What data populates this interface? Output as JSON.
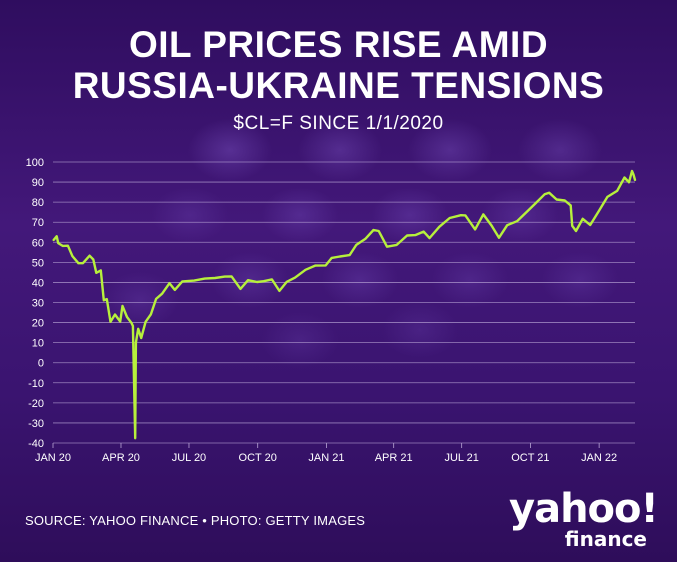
{
  "title_line1": "OIL PRICES RISE AMID",
  "title_line2": "RUSSIA-UKRAINE TENSIONS",
  "subtitle": "$CL=F SINCE 1/1/2020",
  "source": "SOURCE: YAHOO FINANCE • PHOTO: GETTY IMAGES",
  "logo": {
    "main": "yahoo!",
    "sub": "finance"
  },
  "colors": {
    "background": "#3b1470",
    "line": "#b7f03c",
    "grid": "#b9a6d6",
    "text": "#ffffff"
  },
  "chart_data": {
    "type": "line",
    "title": "OIL PRICES RISE AMID RUSSIA-UKRAINE TENSIONS",
    "subtitle": "$CL=F SINCE 1/1/2020",
    "xlabel": "",
    "ylabel": "",
    "ylim": [
      -40,
      100
    ],
    "yticks": [
      100,
      90,
      80,
      70,
      60,
      50,
      40,
      30,
      20,
      10,
      0,
      -10,
      -20,
      -30,
      -40
    ],
    "xlim": [
      "2020-01-01",
      "2022-02-18"
    ],
    "xticks": [
      {
        "date": "2020-01-01",
        "label": "JAN 20"
      },
      {
        "date": "2020-04-01",
        "label": "APR 20"
      },
      {
        "date": "2020-07-01",
        "label": "JUL 20"
      },
      {
        "date": "2020-10-01",
        "label": "OCT 20"
      },
      {
        "date": "2021-01-01",
        "label": "JAN 21"
      },
      {
        "date": "2021-04-01",
        "label": "APR 21"
      },
      {
        "date": "2021-07-01",
        "label": "JUL 21"
      },
      {
        "date": "2021-10-01",
        "label": "OCT 21"
      },
      {
        "date": "2022-01-01",
        "label": "JAN 22"
      }
    ],
    "grid": true,
    "series": [
      {
        "points": [
          [
            "2020-01-02",
            61.2
          ],
          [
            "2020-01-06",
            63.0
          ],
          [
            "2020-01-08",
            59.6
          ],
          [
            "2020-01-14",
            58.2
          ],
          [
            "2020-01-21",
            58.3
          ],
          [
            "2020-01-27",
            53.1
          ],
          [
            "2020-02-04",
            49.6
          ],
          [
            "2020-02-10",
            49.6
          ],
          [
            "2020-02-19",
            53.3
          ],
          [
            "2020-02-24",
            51.4
          ],
          [
            "2020-02-28",
            44.8
          ],
          [
            "2020-03-05",
            46.0
          ],
          [
            "2020-03-09",
            31.1
          ],
          [
            "2020-03-13",
            31.7
          ],
          [
            "2020-03-18",
            20.4
          ],
          [
            "2020-03-24",
            24.0
          ],
          [
            "2020-03-31",
            20.5
          ],
          [
            "2020-04-03",
            28.3
          ],
          [
            "2020-04-09",
            22.8
          ],
          [
            "2020-04-15",
            19.9
          ],
          [
            "2020-04-17",
            18.3
          ],
          [
            "2020-04-20",
            -37.6
          ],
          [
            "2020-04-21",
            10.0
          ],
          [
            "2020-04-24",
            16.9
          ],
          [
            "2020-04-28",
            12.3
          ],
          [
            "2020-05-04",
            20.4
          ],
          [
            "2020-05-11",
            24.1
          ],
          [
            "2020-05-18",
            31.8
          ],
          [
            "2020-05-26",
            34.4
          ],
          [
            "2020-06-05",
            39.6
          ],
          [
            "2020-06-12",
            36.3
          ],
          [
            "2020-06-22",
            40.5
          ],
          [
            "2020-07-08",
            40.9
          ],
          [
            "2020-07-22",
            41.9
          ],
          [
            "2020-08-05",
            42.2
          ],
          [
            "2020-08-18",
            42.9
          ],
          [
            "2020-08-27",
            43.0
          ],
          [
            "2020-09-08",
            36.8
          ],
          [
            "2020-09-18",
            41.1
          ],
          [
            "2020-09-30",
            40.2
          ],
          [
            "2020-10-09",
            40.6
          ],
          [
            "2020-10-20",
            41.5
          ],
          [
            "2020-10-30",
            35.8
          ],
          [
            "2020-11-09",
            40.3
          ],
          [
            "2020-11-20",
            42.4
          ],
          [
            "2020-12-04",
            46.3
          ],
          [
            "2020-12-17",
            48.4
          ],
          [
            "2020-12-31",
            48.5
          ],
          [
            "2021-01-08",
            52.2
          ],
          [
            "2021-01-19",
            52.9
          ],
          [
            "2021-02-01",
            53.6
          ],
          [
            "2021-02-10",
            58.7
          ],
          [
            "2021-02-22",
            61.7
          ],
          [
            "2021-03-05",
            66.1
          ],
          [
            "2021-03-12",
            65.6
          ],
          [
            "2021-03-23",
            57.8
          ],
          [
            "2021-04-05",
            58.7
          ],
          [
            "2021-04-19",
            63.4
          ],
          [
            "2021-04-30",
            63.6
          ],
          [
            "2021-05-11",
            65.3
          ],
          [
            "2021-05-19",
            62.1
          ],
          [
            "2021-06-01",
            67.7
          ],
          [
            "2021-06-15",
            72.1
          ],
          [
            "2021-06-30",
            73.5
          ],
          [
            "2021-07-06",
            73.4
          ],
          [
            "2021-07-19",
            66.4
          ],
          [
            "2021-07-30",
            73.9
          ],
          [
            "2021-08-10",
            68.3
          ],
          [
            "2021-08-20",
            62.3
          ],
          [
            "2021-08-31",
            68.5
          ],
          [
            "2021-09-13",
            70.5
          ],
          [
            "2021-09-27",
            75.5
          ],
          [
            "2021-10-08",
            79.4
          ],
          [
            "2021-10-20",
            83.9
          ],
          [
            "2021-10-26",
            84.7
          ],
          [
            "2021-11-05",
            81.3
          ],
          [
            "2021-11-16",
            80.8
          ],
          [
            "2021-11-24",
            78.4
          ],
          [
            "2021-11-26",
            68.2
          ],
          [
            "2021-12-01",
            65.6
          ],
          [
            "2021-12-10",
            71.7
          ],
          [
            "2021-12-20",
            68.6
          ],
          [
            "2021-12-31",
            75.2
          ],
          [
            "2022-01-12",
            82.6
          ],
          [
            "2022-01-25",
            85.6
          ],
          [
            "2022-02-04",
            92.3
          ],
          [
            "2022-02-10",
            89.9
          ],
          [
            "2022-02-14",
            95.5
          ],
          [
            "2022-02-16",
            93.7
          ],
          [
            "2022-02-18",
            91.1
          ]
        ]
      }
    ]
  }
}
